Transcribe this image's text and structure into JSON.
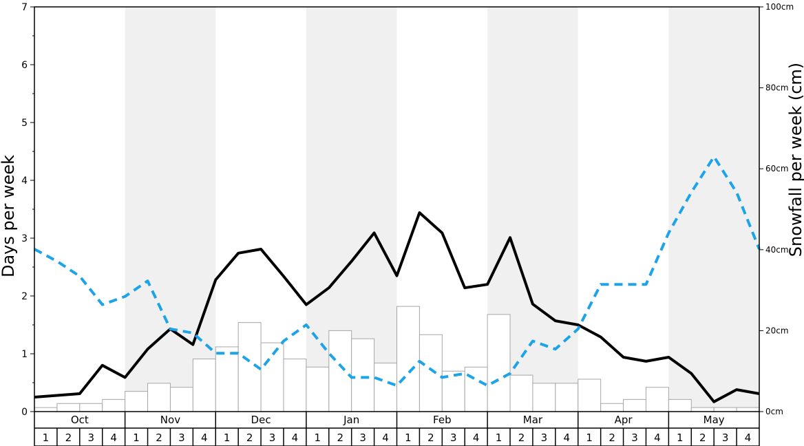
{
  "chart_data": {
    "type": "bar",
    "ylabel": "Days per week",
    "y2label": "Snowfall per week (cm)",
    "ylim": [
      0,
      7
    ],
    "y2lim": [
      0,
      100
    ],
    "yticks": [
      "0",
      "1",
      "2",
      "3",
      "4",
      "5",
      "6",
      "7"
    ],
    "y2ticks": [
      "0cm",
      "20cm",
      "40cm",
      "60cm",
      "80cm",
      "100cm"
    ],
    "months": [
      "Oct",
      "Nov",
      "Dec",
      "Jan",
      "Feb",
      "Mar",
      "Apr",
      "May"
    ],
    "weeks": [
      "1",
      "2",
      "3",
      "4"
    ],
    "grid": false,
    "shaded_months": [
      "Nov",
      "Jan",
      "Mar",
      "May"
    ],
    "colors": {
      "bars_fill": "#ffffff",
      "bars_stroke": "#a6a6a6",
      "solid_line": "#000000",
      "dashed_line": "#1ca3e8",
      "shade": "#f0f0f0"
    },
    "series": [
      {
        "kind": "bar",
        "axis": "right",
        "values": [
          1,
          2,
          2,
          3,
          5,
          7,
          6,
          13,
          16,
          22,
          17,
          13,
          11,
          20,
          18,
          12,
          26,
          19,
          10,
          11,
          24,
          9,
          7,
          7,
          8,
          2,
          3,
          6,
          3,
          1,
          1,
          1
        ]
      },
      {
        "kind": "line",
        "style": "solid",
        "axis": "left",
        "values": [
          0.25,
          0.28,
          0.31,
          0.8,
          0.59,
          1.08,
          1.43,
          1.16,
          2.28,
          2.74,
          2.81,
          2.34,
          1.85,
          2.14,
          2.6,
          3.09,
          2.35,
          3.44,
          3.09,
          2.14,
          2.2,
          3.01,
          1.86,
          1.57,
          1.5,
          1.29,
          0.94,
          0.87,
          0.94,
          0.66,
          0.17,
          0.38,
          0.31
        ]
      },
      {
        "kind": "line",
        "style": "dashed",
        "axis": "left",
        "values": [
          2.81,
          2.6,
          2.34,
          1.85,
          1.99,
          2.26,
          1.43,
          1.36,
          1.01,
          1.01,
          0.73,
          1.22,
          1.5,
          1.01,
          0.59,
          0.59,
          0.45,
          0.87,
          0.59,
          0.66,
          0.45,
          0.66,
          1.22,
          1.08,
          1.43,
          2.2,
          2.2,
          2.2,
          3.09,
          3.79,
          4.41,
          3.79,
          2.81
        ]
      }
    ]
  }
}
